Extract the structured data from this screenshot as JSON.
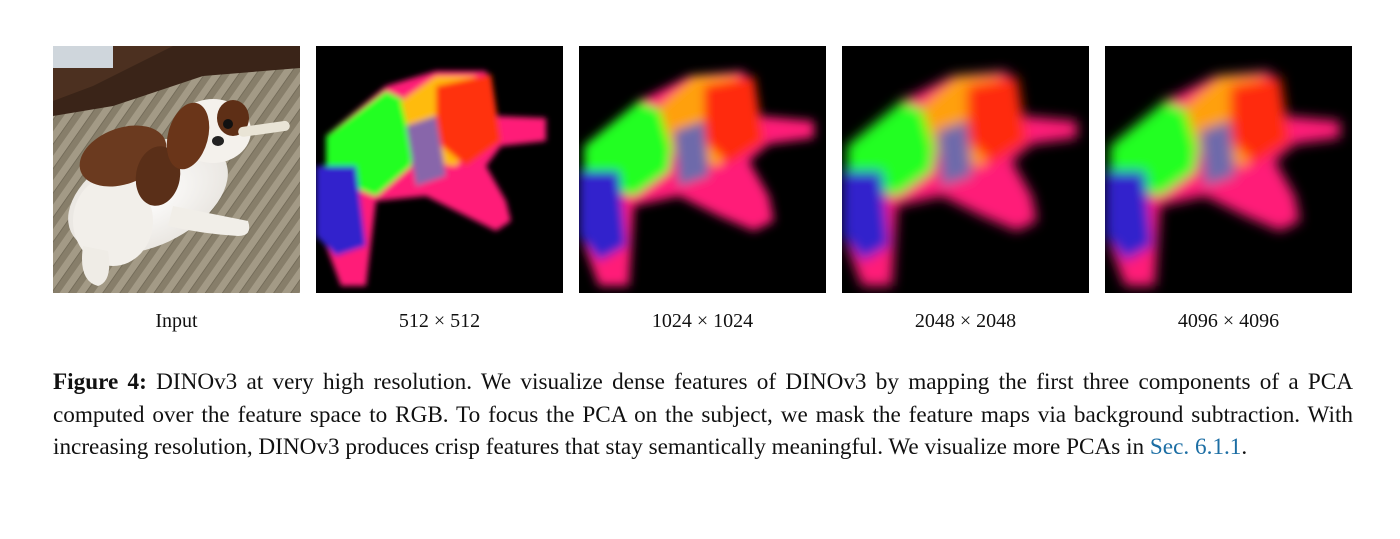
{
  "figure": {
    "panels": [
      {
        "label": "Input",
        "image": "photo-dog-on-rug"
      },
      {
        "label": "512 × 512",
        "image": "pca-features-512",
        "pixel_grid": 24
      },
      {
        "label": "1024 × 1024",
        "image": "pca-features-1024",
        "pixel_grid": 48
      },
      {
        "label": "2048 × 2048",
        "image": "pca-features-2048",
        "pixel_grid": 0
      },
      {
        "label": "4096 × 4096",
        "image": "pca-features-4096",
        "pixel_grid": 0
      }
    ],
    "caption": {
      "lead": "Figure 4:",
      "text": " DINOv3 at very high resolution. We visualize dense features of DINOv3 by mapping the first three components of a PCA computed over the feature space to RGB. To focus the PCA on the subject, we mask the feature maps via background subtraction. With increasing resolution, DINOv3 produces crisp features that stay semantically meaningful. We visualize more PCAs in ",
      "ref": "Sec. 6.1.1",
      "end": "."
    }
  },
  "colors": {
    "ref_link": "#1c6ea4",
    "pca_red": "#ff2a10",
    "pca_green": "#22ff22",
    "pca_blue": "#3322cc",
    "pca_magenta": "#ff1e78",
    "background": "#000000"
  }
}
